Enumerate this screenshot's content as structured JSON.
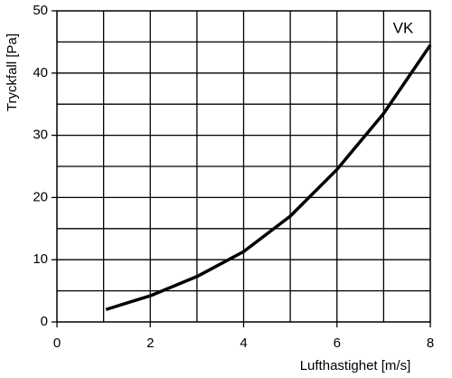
{
  "chart_data": {
    "type": "line",
    "x_label": "Lufthastighet [m/s]",
    "y_label": "Tryckfall [Pa]",
    "annotation": "VK",
    "x": [
      1.05,
      2,
      3,
      4,
      5,
      6,
      7,
      8
    ],
    "series": [
      {
        "name": "VK",
        "color": "#000000",
        "values": [
          2,
          4.2,
          7.3,
          11.3,
          17,
          24.5,
          33.5,
          44.5
        ]
      }
    ],
    "xlim": [
      0,
      8
    ],
    "ylim": [
      0,
      50
    ],
    "xticks": [
      0,
      2,
      4,
      6,
      8
    ],
    "yticks": [
      0,
      10,
      20,
      30,
      40,
      50
    ],
    "x_gridlines": [
      1,
      2,
      3,
      4,
      5,
      6,
      7
    ],
    "y_gridlines": [
      5,
      10,
      15,
      20,
      25,
      30,
      35,
      40,
      45
    ],
    "grid": true
  }
}
